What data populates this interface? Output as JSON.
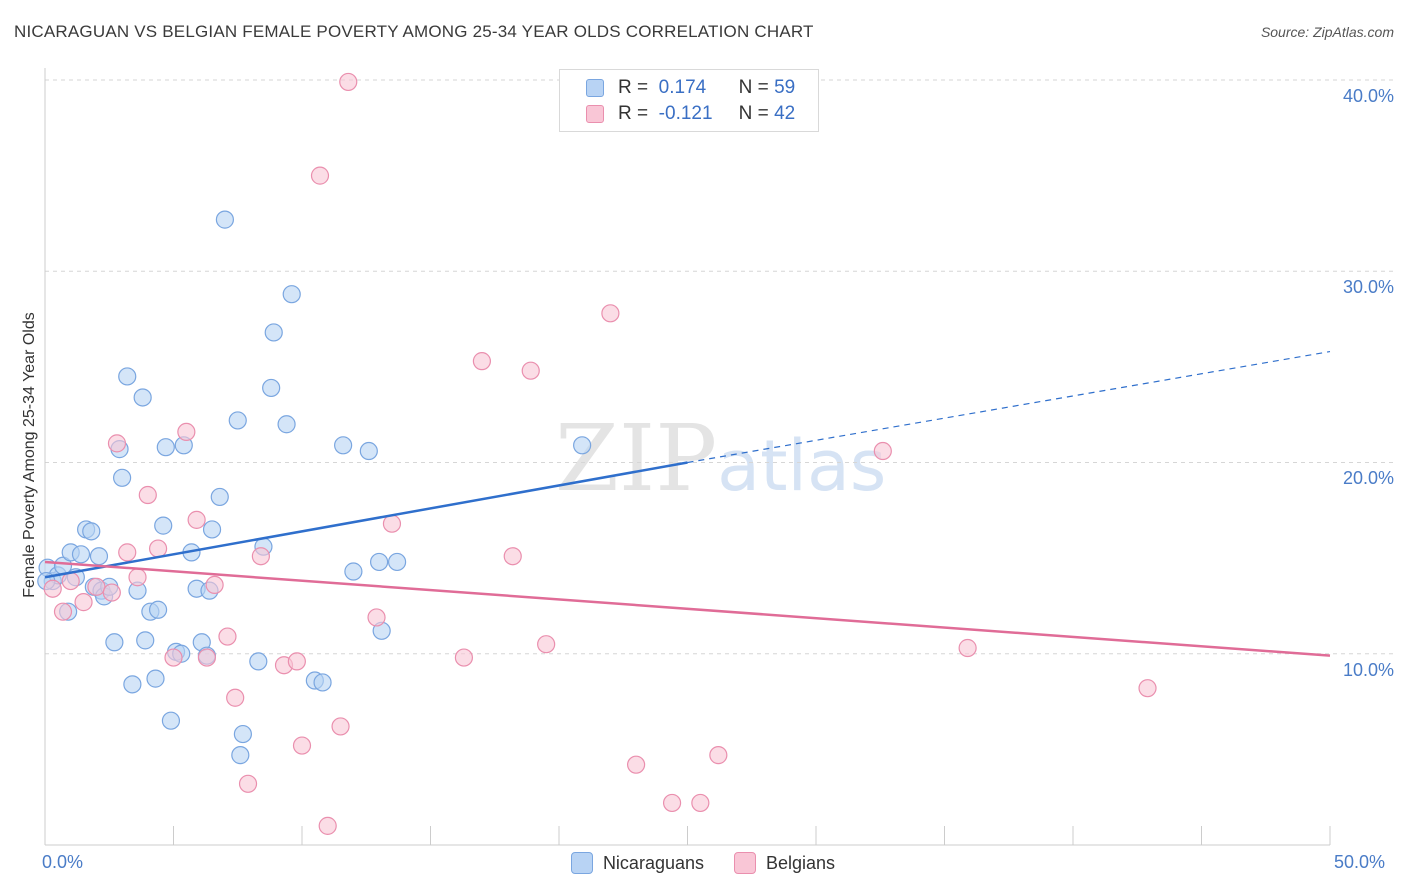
{
  "title": "NICARAGUAN VS BELGIAN FEMALE POVERTY AMONG 25-34 YEAR OLDS CORRELATION CHART",
  "source": "Source: ZipAtlas.com",
  "watermark": "ZIPatlas",
  "colors": {
    "nicaraguans_fill": "#b8d3f4",
    "nicaraguans_stroke": "#7aa6e0",
    "nicaraguans_line": "#2f6fcc",
    "belgians_fill": "#f9c6d6",
    "belgians_stroke": "#ea8fae",
    "belgians_line": "#e06c97",
    "tick_text": "#4a7cc7",
    "grid": "#d6d6d6"
  },
  "legend": {
    "rows": [
      {
        "r_label": "R =",
        "r_value": "0.174",
        "n_label": "N =",
        "n_value": "59"
      },
      {
        "r_label": "R =",
        "r_value": "-0.121",
        "n_label": "N =",
        "n_value": "42"
      }
    ]
  },
  "chart_data": {
    "type": "scatter",
    "title": "NICARAGUAN VS BELGIAN FEMALE POVERTY AMONG 25-34 YEAR OLDS CORRELATION CHART",
    "xlabel": "",
    "ylabel": "Female Poverty Among 25-34 Year Olds",
    "xlim": [
      0,
      50
    ],
    "ylim": [
      0,
      40
    ],
    "x_tick_labels": [
      "0.0%",
      "50.0%"
    ],
    "y_ticks": [
      10,
      20,
      30,
      40
    ],
    "y_tick_labels": [
      "10.0%",
      "20.0%",
      "30.0%",
      "40.0%"
    ],
    "grid": "horizontal dashed",
    "legend_position": "top-center",
    "series": [
      {
        "name": "Nicaraguans",
        "points": [
          [
            0.1,
            14.5
          ],
          [
            0.3,
            13.8
          ],
          [
            0.5,
            14.1
          ],
          [
            0.7,
            14.6
          ],
          [
            0.9,
            12.2
          ],
          [
            1.0,
            15.3
          ],
          [
            1.2,
            14.0
          ],
          [
            1.4,
            15.2
          ],
          [
            1.6,
            16.5
          ],
          [
            1.8,
            16.4
          ],
          [
            1.9,
            13.5
          ],
          [
            2.1,
            15.1
          ],
          [
            2.2,
            13.3
          ],
          [
            2.3,
            13.0
          ],
          [
            2.5,
            13.5
          ],
          [
            2.7,
            10.6
          ],
          [
            2.9,
            20.7
          ],
          [
            3.0,
            19.2
          ],
          [
            3.2,
            24.5
          ],
          [
            3.4,
            8.4
          ],
          [
            3.6,
            13.3
          ],
          [
            3.8,
            23.4
          ],
          [
            3.9,
            10.7
          ],
          [
            4.1,
            12.2
          ],
          [
            4.3,
            8.7
          ],
          [
            4.4,
            12.3
          ],
          [
            4.6,
            16.7
          ],
          [
            4.7,
            20.8
          ],
          [
            4.9,
            6.5
          ],
          [
            5.1,
            10.1
          ],
          [
            5.3,
            10.0
          ],
          [
            5.4,
            20.9
          ],
          [
            5.7,
            15.3
          ],
          [
            5.9,
            13.4
          ],
          [
            6.1,
            10.6
          ],
          [
            6.3,
            9.9
          ],
          [
            6.4,
            13.3
          ],
          [
            6.5,
            16.5
          ],
          [
            6.8,
            18.2
          ],
          [
            7.0,
            32.7
          ],
          [
            7.5,
            22.2
          ],
          [
            7.6,
            4.7
          ],
          [
            7.7,
            5.8
          ],
          [
            8.3,
            9.6
          ],
          [
            8.5,
            15.6
          ],
          [
            8.8,
            23.9
          ],
          [
            8.9,
            26.8
          ],
          [
            9.4,
            22.0
          ],
          [
            9.6,
            28.8
          ],
          [
            10.5,
            8.6
          ],
          [
            10.8,
            8.5
          ],
          [
            11.6,
            20.9
          ],
          [
            12.0,
            14.3
          ],
          [
            12.6,
            20.6
          ],
          [
            13.0,
            14.8
          ],
          [
            13.1,
            11.2
          ],
          [
            13.7,
            14.8
          ],
          [
            20.9,
            20.9
          ],
          [
            0.05,
            13.8
          ]
        ]
      },
      {
        "name": "Belgians",
        "points": [
          [
            0.3,
            13.4
          ],
          [
            0.7,
            12.2
          ],
          [
            1.0,
            13.8
          ],
          [
            1.5,
            12.7
          ],
          [
            2.0,
            13.5
          ],
          [
            2.6,
            13.2
          ],
          [
            2.8,
            21.0
          ],
          [
            3.2,
            15.3
          ],
          [
            3.6,
            14.0
          ],
          [
            4.0,
            18.3
          ],
          [
            4.4,
            15.5
          ],
          [
            5.0,
            9.8
          ],
          [
            5.5,
            21.6
          ],
          [
            5.9,
            17.0
          ],
          [
            6.3,
            9.8
          ],
          [
            6.6,
            13.6
          ],
          [
            7.1,
            10.9
          ],
          [
            7.4,
            7.7
          ],
          [
            7.9,
            3.2
          ],
          [
            8.4,
            15.1
          ],
          [
            9.3,
            9.4
          ],
          [
            9.8,
            9.6
          ],
          [
            10.0,
            5.2
          ],
          [
            10.7,
            35.0
          ],
          [
            11.0,
            1.0
          ],
          [
            11.5,
            6.2
          ],
          [
            11.8,
            39.9
          ],
          [
            12.9,
            11.9
          ],
          [
            13.5,
            16.8
          ],
          [
            16.3,
            9.8
          ],
          [
            17.0,
            25.3
          ],
          [
            18.2,
            15.1
          ],
          [
            18.9,
            24.8
          ],
          [
            19.5,
            10.5
          ],
          [
            22.0,
            27.8
          ],
          [
            23.0,
            4.2
          ],
          [
            24.4,
            2.2
          ],
          [
            25.5,
            2.2
          ],
          [
            26.2,
            4.7
          ],
          [
            32.6,
            20.6
          ],
          [
            35.9,
            10.3
          ],
          [
            42.9,
            8.2
          ]
        ]
      }
    ],
    "trendlines": [
      {
        "series": "Nicaraguans",
        "x": [
          0,
          25
        ],
        "y": [
          14.0,
          20.0
        ],
        "dashed_extension": {
          "x": [
            25,
            50
          ],
          "y": [
            20.0,
            25.8
          ]
        }
      },
      {
        "series": "Belgians",
        "x": [
          0,
          50
        ],
        "y": [
          14.8,
          9.9
        ]
      }
    ]
  },
  "bottom_legend": {
    "items": [
      "Nicaraguans",
      "Belgians"
    ]
  }
}
